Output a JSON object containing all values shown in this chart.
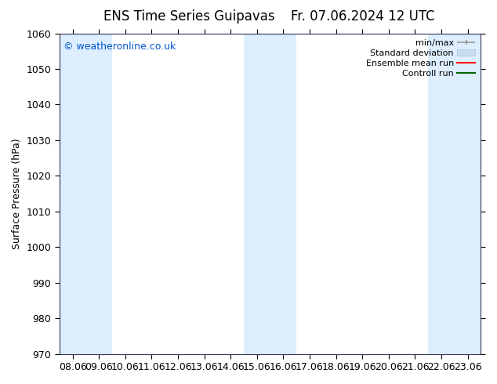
{
  "title_left": "ENS Time Series Guipavas",
  "title_right": "Fr. 07.06.2024 12 UTC",
  "ylabel": "Surface Pressure (hPa)",
  "ylim": [
    970,
    1060
  ],
  "yticks": [
    970,
    980,
    990,
    1000,
    1010,
    1020,
    1030,
    1040,
    1050,
    1060
  ],
  "xlabels": [
    "08.06",
    "09.06",
    "10.06",
    "11.06",
    "12.06",
    "13.06",
    "14.06",
    "15.06",
    "16.06",
    "17.06",
    "18.06",
    "19.06",
    "20.06",
    "21.06",
    "22.06",
    "23.06"
  ],
  "shade_color": "#ddeeff",
  "shade_color2": "#cce8f8",
  "bg_color": "#ffffff",
  "plot_bg_color": "#ffffff",
  "ensemble_mean_color": "#ff0000",
  "control_color": "#006600",
  "stddev_color": "#c8dff0",
  "minmax_color": "#999999",
  "copyright_text": "© weatheronline.co.uk",
  "copyright_color": "#0055cc",
  "legend_entries": [
    "min/max",
    "Standard deviation",
    "Ensemble mean run",
    "Controll run"
  ],
  "title_fontsize": 12,
  "axis_fontsize": 9,
  "tick_fontsize": 9,
  "shaded_indices": [
    0,
    1,
    7,
    8,
    14,
    15
  ]
}
